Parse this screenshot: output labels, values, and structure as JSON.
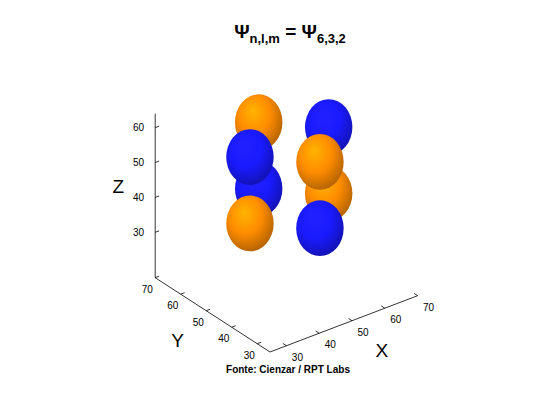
{
  "chart_data": {
    "type": "isosurface3d",
    "title": [
      "Ψ",
      "n,l,m",
      " = Ψ",
      "6,3,2"
    ],
    "source": "Fonte: Cienzar / RPT Labs",
    "x_label": "X",
    "y_label": "Y",
    "z_label": "Z",
    "xlim": [
      25,
      70
    ],
    "ylim": [
      25,
      70
    ],
    "zlim": [
      17,
      64
    ],
    "xticks": [
      30,
      40,
      50,
      60,
      70
    ],
    "yticks": [
      30,
      40,
      50,
      60,
      70
    ],
    "zticks": [
      30,
      40,
      50,
      60
    ],
    "radius": 8,
    "lobes": [
      {
        "x": 48,
        "y": 59,
        "z": 58.5,
        "color": "#ff8c00"
      },
      {
        "x": 36,
        "y": 47,
        "z": 58.5,
        "color": "#1a1aff"
      },
      {
        "x": 48,
        "y": 59,
        "z": 39.5,
        "color": "#1a1aff"
      },
      {
        "x": 36,
        "y": 47,
        "z": 39.5,
        "color": "#ff8c00"
      },
      {
        "x": 60,
        "y": 47,
        "z": 58.5,
        "color": "#1a1aff"
      },
      {
        "x": 48,
        "y": 35,
        "z": 58.5,
        "color": "#ff8c00"
      },
      {
        "x": 60,
        "y": 47,
        "z": 39.5,
        "color": "#ff8c00"
      },
      {
        "x": 48,
        "y": 35,
        "z": 39.5,
        "color": "#1a1aff"
      }
    ]
  }
}
